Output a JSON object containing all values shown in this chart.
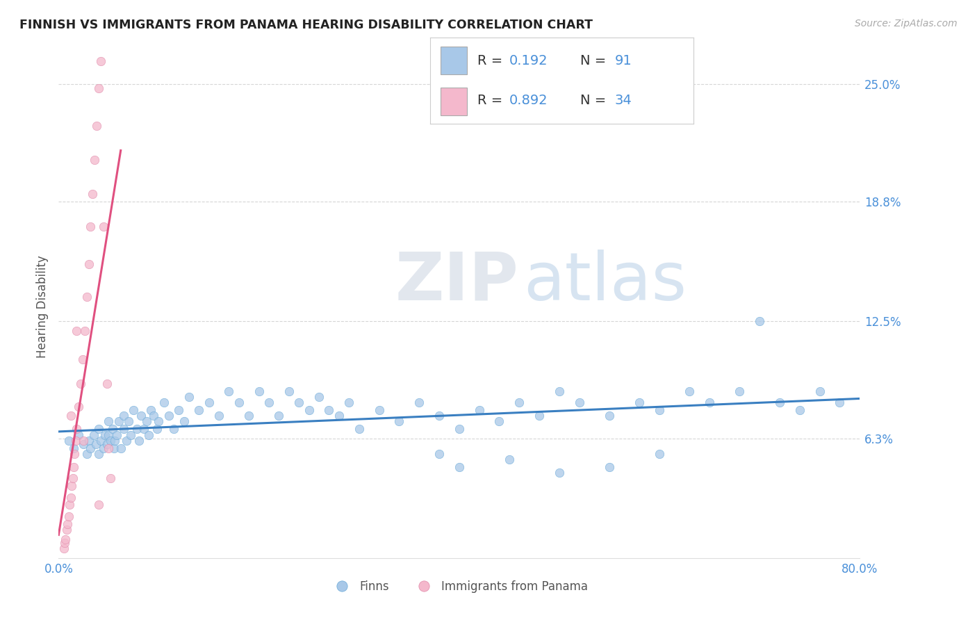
{
  "title": "FINNISH VS IMMIGRANTS FROM PANAMA HEARING DISABILITY CORRELATION CHART",
  "source_text": "Source: ZipAtlas.com",
  "ylabel": "Hearing Disability",
  "watermark_zip": "ZIP",
  "watermark_atlas": "atlas",
  "legend_label1": "Finns",
  "legend_label2": "Immigrants from Panama",
  "r1": 0.192,
  "n1": 91,
  "r2": 0.892,
  "n2": 34,
  "color1": "#a8c8e8",
  "color2": "#f4b8cc",
  "line_color1": "#3a7fc1",
  "line_color2": "#e05080",
  "xmin": 0.0,
  "xmax": 0.8,
  "ymin": 0.0,
  "ymax": 0.265,
  "yticks": [
    0.063,
    0.125,
    0.188,
    0.25
  ],
  "ytick_labels": [
    "6.3%",
    "12.5%",
    "18.8%",
    "25.0%"
  ],
  "background_color": "#ffffff",
  "grid_color": "#cccccc",
  "title_color": "#222222",
  "axis_label_color": "#555555",
  "tick_label_color": "#4a90d9",
  "blue_scatter_x": [
    0.01,
    0.015,
    0.02,
    0.025,
    0.028,
    0.03,
    0.032,
    0.035,
    0.037,
    0.04,
    0.04,
    0.042,
    0.045,
    0.046,
    0.048,
    0.05,
    0.05,
    0.052,
    0.054,
    0.055,
    0.056,
    0.058,
    0.06,
    0.062,
    0.065,
    0.065,
    0.068,
    0.07,
    0.072,
    0.075,
    0.078,
    0.08,
    0.082,
    0.085,
    0.088,
    0.09,
    0.092,
    0.095,
    0.098,
    0.1,
    0.105,
    0.11,
    0.115,
    0.12,
    0.125,
    0.13,
    0.14,
    0.15,
    0.16,
    0.17,
    0.18,
    0.19,
    0.2,
    0.21,
    0.22,
    0.23,
    0.24,
    0.25,
    0.26,
    0.27,
    0.28,
    0.29,
    0.3,
    0.32,
    0.34,
    0.36,
    0.38,
    0.4,
    0.42,
    0.44,
    0.46,
    0.48,
    0.5,
    0.52,
    0.55,
    0.58,
    0.6,
    0.63,
    0.65,
    0.68,
    0.7,
    0.72,
    0.74,
    0.76,
    0.78,
    0.38,
    0.4,
    0.45,
    0.5,
    0.55,
    0.6
  ],
  "blue_scatter_y": [
    0.062,
    0.058,
    0.065,
    0.06,
    0.055,
    0.062,
    0.058,
    0.065,
    0.06,
    0.055,
    0.068,
    0.062,
    0.058,
    0.065,
    0.06,
    0.072,
    0.065,
    0.062,
    0.068,
    0.058,
    0.062,
    0.065,
    0.072,
    0.058,
    0.068,
    0.075,
    0.062,
    0.072,
    0.065,
    0.078,
    0.068,
    0.062,
    0.075,
    0.068,
    0.072,
    0.065,
    0.078,
    0.075,
    0.068,
    0.072,
    0.082,
    0.075,
    0.068,
    0.078,
    0.072,
    0.085,
    0.078,
    0.082,
    0.075,
    0.088,
    0.082,
    0.075,
    0.088,
    0.082,
    0.075,
    0.088,
    0.082,
    0.078,
    0.085,
    0.078,
    0.075,
    0.082,
    0.068,
    0.078,
    0.072,
    0.082,
    0.075,
    0.068,
    0.078,
    0.072,
    0.082,
    0.075,
    0.088,
    0.082,
    0.075,
    0.082,
    0.078,
    0.088,
    0.082,
    0.088,
    0.125,
    0.082,
    0.078,
    0.088,
    0.082,
    0.055,
    0.048,
    0.052,
    0.045,
    0.048,
    0.055
  ],
  "pink_scatter_x": [
    0.005,
    0.006,
    0.007,
    0.008,
    0.009,
    0.01,
    0.011,
    0.012,
    0.013,
    0.014,
    0.015,
    0.016,
    0.017,
    0.018,
    0.02,
    0.022,
    0.024,
    0.026,
    0.028,
    0.03,
    0.032,
    0.034,
    0.036,
    0.038,
    0.04,
    0.042,
    0.045,
    0.048,
    0.05,
    0.052,
    0.012,
    0.018,
    0.025,
    0.04
  ],
  "pink_scatter_y": [
    0.005,
    0.008,
    0.01,
    0.015,
    0.018,
    0.022,
    0.028,
    0.032,
    0.038,
    0.042,
    0.048,
    0.055,
    0.062,
    0.068,
    0.08,
    0.092,
    0.105,
    0.12,
    0.138,
    0.155,
    0.175,
    0.192,
    0.21,
    0.228,
    0.248,
    0.262,
    0.175,
    0.092,
    0.058,
    0.042,
    0.075,
    0.12,
    0.062,
    0.028
  ]
}
